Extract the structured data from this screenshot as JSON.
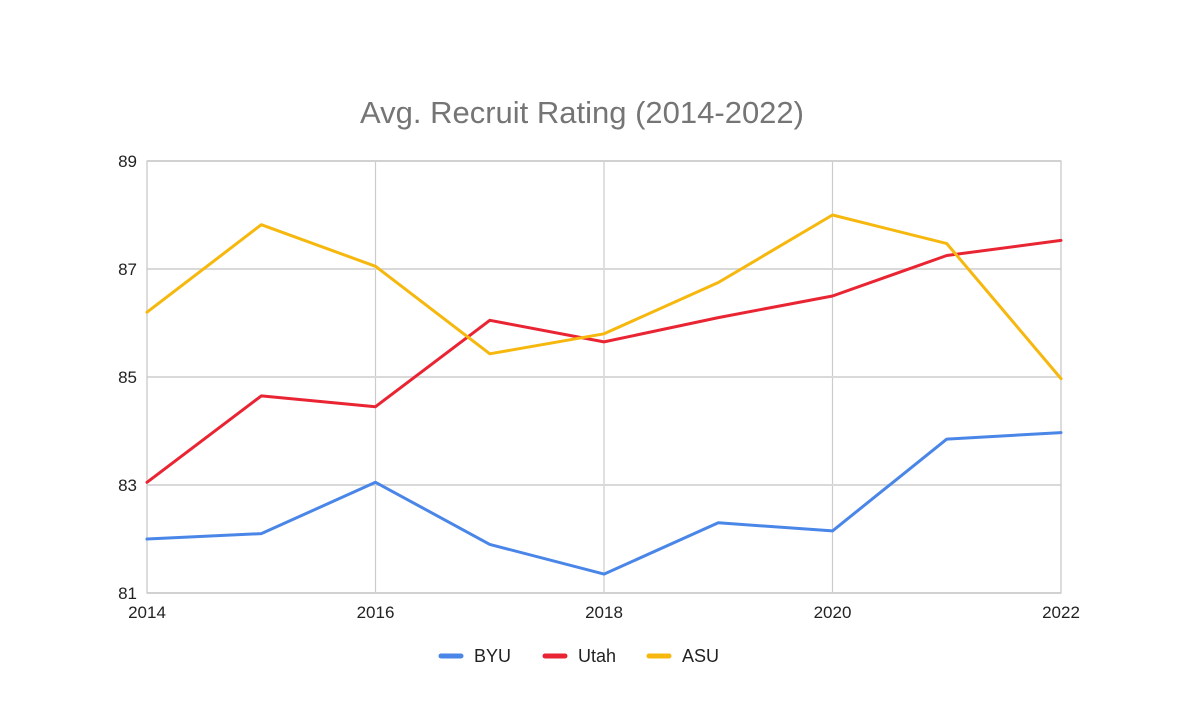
{
  "chart_data": {
    "type": "line",
    "title": "Avg. Recruit Rating (2014-2022)",
    "xlabel": "",
    "ylabel": "",
    "x": [
      2014,
      2015,
      2016,
      2017,
      2018,
      2019,
      2020,
      2021,
      2022
    ],
    "x_ticks": [
      "2014",
      "2016",
      "2018",
      "2020",
      "2022"
    ],
    "y_ticks": [
      "81",
      "83",
      "85",
      "87",
      "89"
    ],
    "xlim": [
      2014,
      2022
    ],
    "ylim": [
      81,
      89
    ],
    "grid": true,
    "legend_position": "bottom",
    "series": [
      {
        "name": "BYU",
        "color": "#4a86e8",
        "values": [
          82.0,
          82.1,
          83.05,
          81.9,
          81.35,
          82.3,
          82.15,
          83.85,
          83.97
        ]
      },
      {
        "name": "Utah",
        "color": "#ea2533",
        "values": [
          83.05,
          84.65,
          84.45,
          86.05,
          85.65,
          86.1,
          86.5,
          87.25,
          87.53
        ]
      },
      {
        "name": "ASU",
        "color": "#f6b80e",
        "values": [
          86.2,
          87.82,
          87.05,
          85.43,
          85.8,
          86.75,
          88.0,
          87.47,
          84.97
        ]
      }
    ]
  }
}
